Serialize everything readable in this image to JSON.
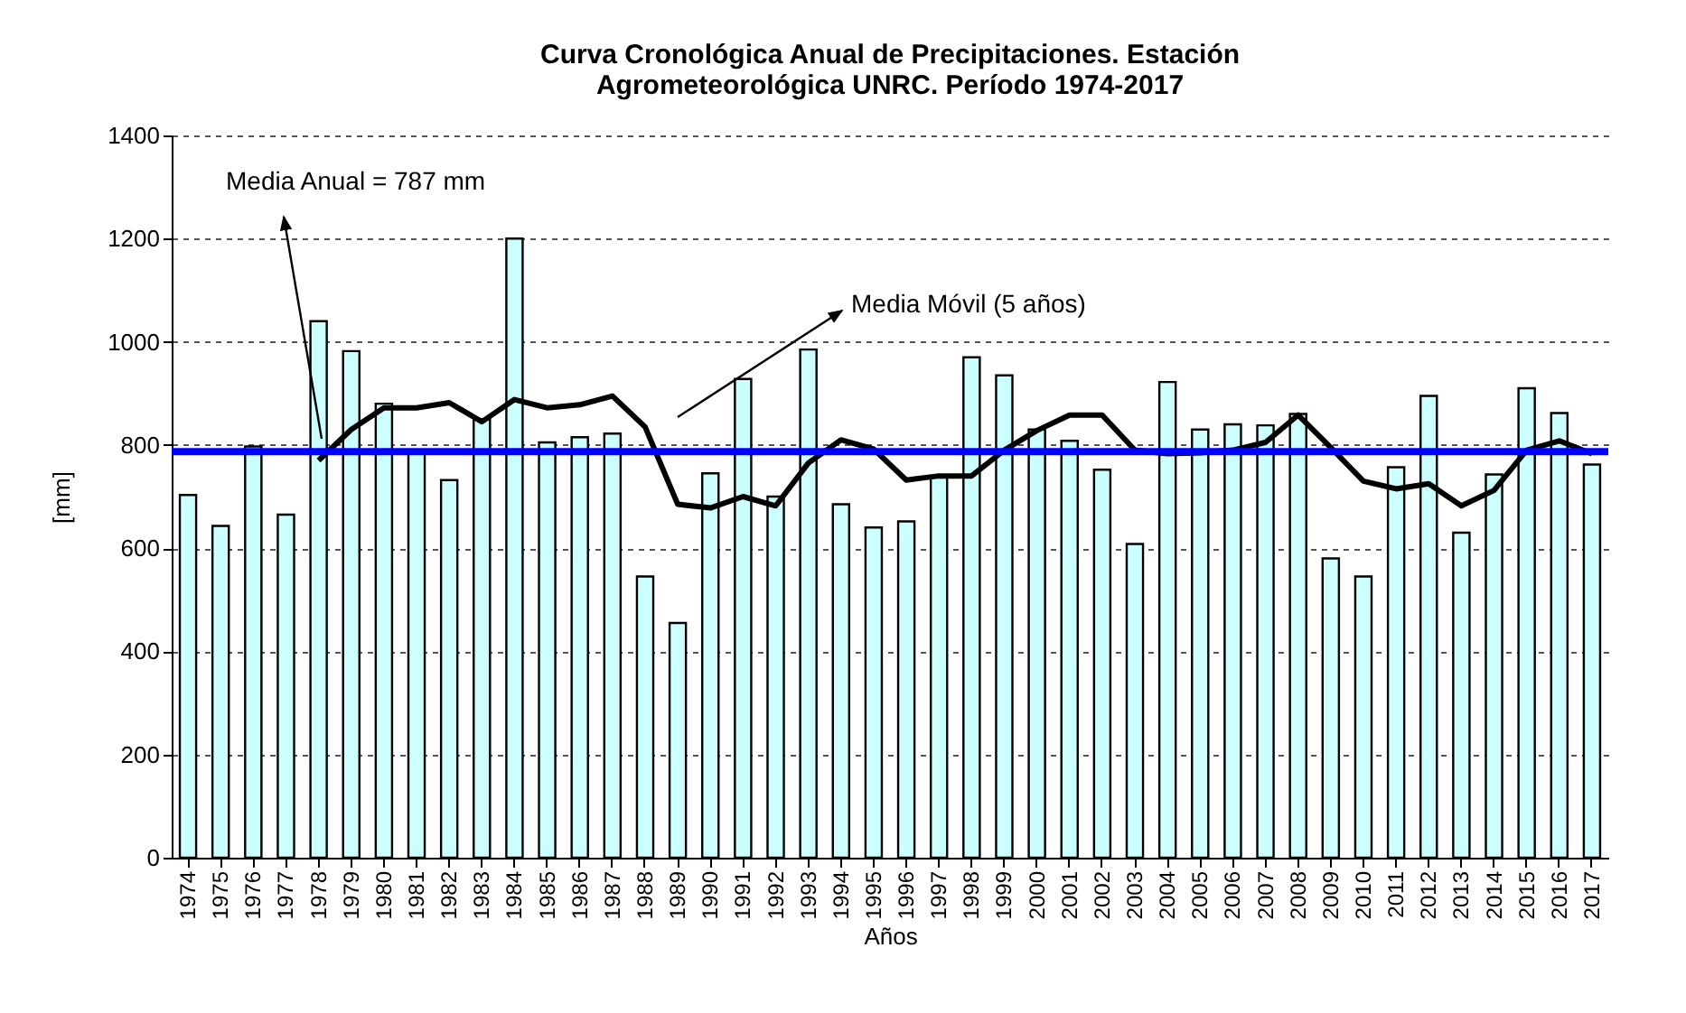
{
  "chart_data": {
    "type": "bar",
    "title": "Curva Cronológica Anual de Precipitaciones. Estación Agrometeorológica UNRC. Período 1974-2017",
    "xlabel": "Años",
    "ylabel": "[mm]",
    "categories": [
      "1974",
      "1975",
      "1976",
      "1977",
      "1978",
      "1979",
      "1980",
      "1981",
      "1982",
      "1983",
      "1984",
      "1985",
      "1986",
      "1987",
      "1988",
      "1989",
      "1990",
      "1991",
      "1992",
      "1993",
      "1994",
      "1995",
      "1996",
      "1997",
      "1998",
      "1999",
      "2000",
      "2001",
      "2002",
      "2003",
      "2004",
      "2005",
      "2006",
      "2007",
      "2008",
      "2009",
      "2010",
      "2011",
      "2012",
      "2013",
      "2014",
      "2015",
      "2016",
      "2017"
    ],
    "series": [
      {
        "color": "#ccffff",
        "values": [
          703,
          643,
          797,
          665,
          1040,
          982,
          880,
          790,
          732,
          850,
          1200,
          805,
          815,
          822,
          545,
          455,
          745,
          928,
          700,
          985,
          685,
          640,
          652,
          740,
          970,
          935,
          830,
          808,
          752,
          608,
          922,
          830,
          840,
          838,
          860,
          580,
          545,
          757,
          895,
          630,
          743,
          910,
          862,
          762
        ]
      },
      {
        "type": "line",
        "name": "Media Móvil (5 años)",
        "color": "#000000",
        "values": [
          null,
          null,
          null,
          null,
          770,
          830,
          872,
          872,
          882,
          845,
          888,
          872,
          878,
          895,
          835,
          685,
          678,
          700,
          682,
          765,
          810,
          792,
          732,
          740,
          740,
          790,
          828,
          858,
          858,
          790,
          783,
          785,
          790,
          805,
          858,
          795,
          730,
          715,
          725,
          682,
          712,
          790,
          808,
          783
        ]
      }
    ],
    "ref_lines": [
      {
        "axis": "y",
        "value": 787,
        "label": "Media Anual = 787 mm",
        "color": "#0000ff"
      }
    ],
    "ylim": [
      0,
      1400
    ],
    "yticks": [
      0,
      200,
      400,
      600,
      800,
      1000,
      1200,
      1400
    ],
    "grid": "y"
  }
}
